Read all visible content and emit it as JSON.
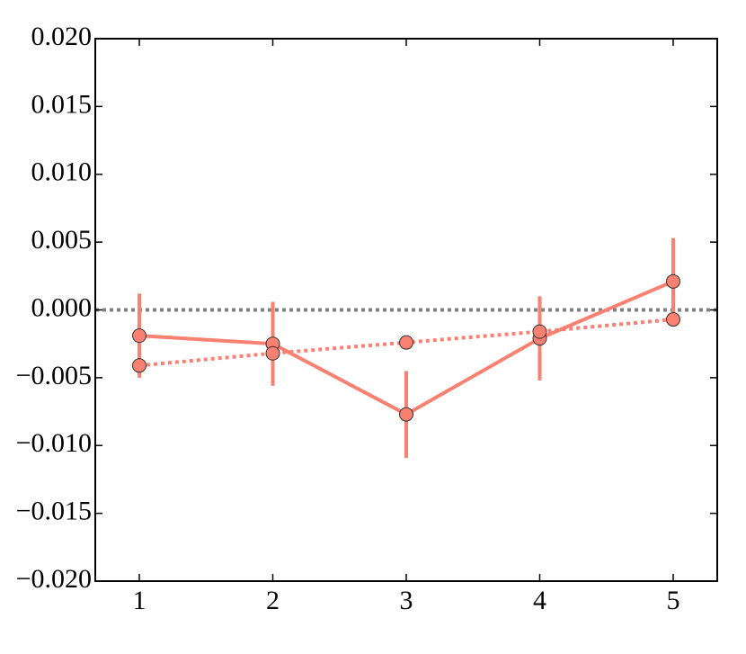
{
  "chart_data": {
    "type": "line",
    "x": [
      1,
      2,
      3,
      4,
      5
    ],
    "series": [
      {
        "color": "#fa8072",
        "style": "solid",
        "values": [
          -0.0019,
          -0.0025,
          -0.0077,
          -0.0021,
          0.0021
        ],
        "errors": [
          0.0031,
          0.0031,
          0.0032,
          0.0031,
          0.0032
        ]
      },
      {
        "color": "#fa8072",
        "style": "dotted",
        "values": [
          -0.0041,
          -0.0032,
          -0.0024,
          -0.0016,
          -0.0007
        ]
      }
    ],
    "hline": {
      "value": 0,
      "color": "#808080",
      "style": "dotted"
    },
    "xlim": [
      0.67,
      5.33
    ],
    "xticks": [
      1,
      2,
      3,
      4,
      5
    ],
    "ylim": [
      -0.02,
      0.02
    ],
    "yticks": [
      {
        "value": -0.02,
        "label": "−0.020"
      },
      {
        "value": -0.015,
        "label": "−0.015"
      },
      {
        "value": -0.01,
        "label": "−0.010"
      },
      {
        "value": -0.005,
        "label": "−0.005"
      },
      {
        "value": 0,
        "label": "0.000"
      },
      {
        "value": 0.005,
        "label": "0.005"
      },
      {
        "value": 0.01,
        "label": "0.010"
      },
      {
        "value": 0.015,
        "label": "0.015"
      },
      {
        "value": 0.02,
        "label": "0.020"
      }
    ],
    "grid": false
  }
}
